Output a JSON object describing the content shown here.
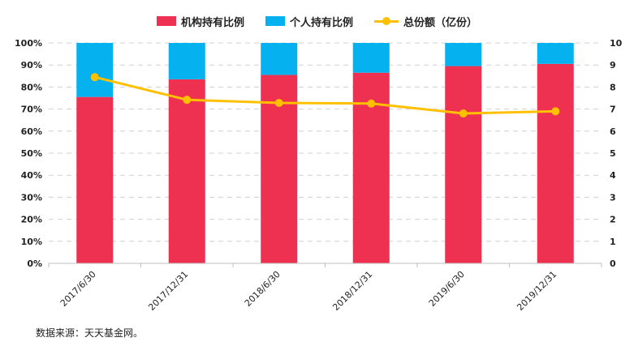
{
  "chart_data": {
    "type": "bar",
    "stacked": true,
    "categories": [
      "2017/6/30",
      "2017/12/31",
      "2018/6/30",
      "2018/12/31",
      "2019/6/30",
      "2019/12/31"
    ],
    "series": [
      {
        "name": "机构持有比例",
        "kind": "bar",
        "axis": "left",
        "color": "#ee3150",
        "values": [
          75.5,
          83.5,
          85.5,
          86.5,
          89.5,
          90.5
        ]
      },
      {
        "name": "个人持有比例",
        "kind": "bar",
        "axis": "left",
        "color": "#05b1ee",
        "values": [
          24.5,
          16.5,
          14.5,
          13.5,
          10.5,
          9.5
        ]
      },
      {
        "name": "总份额（亿份）",
        "kind": "line",
        "axis": "right",
        "color": "#ffc000",
        "values": [
          8.45,
          7.42,
          7.28,
          7.25,
          6.8,
          6.9
        ]
      }
    ],
    "y_left": {
      "min": 0,
      "max": 100,
      "step": 10,
      "ticks": [
        "0%",
        "10%",
        "20%",
        "30%",
        "40%",
        "50%",
        "60%",
        "70%",
        "80%",
        "90%",
        "100%"
      ]
    },
    "y_right": {
      "min": 0,
      "max": 10,
      "step": 1,
      "ticks": [
        "0",
        "1",
        "2",
        "3",
        "4",
        "5",
        "6",
        "7",
        "8",
        "9",
        "10"
      ]
    },
    "grid": true,
    "legend_position": "top-center"
  },
  "source_text": "数据来源：天天基金网。"
}
